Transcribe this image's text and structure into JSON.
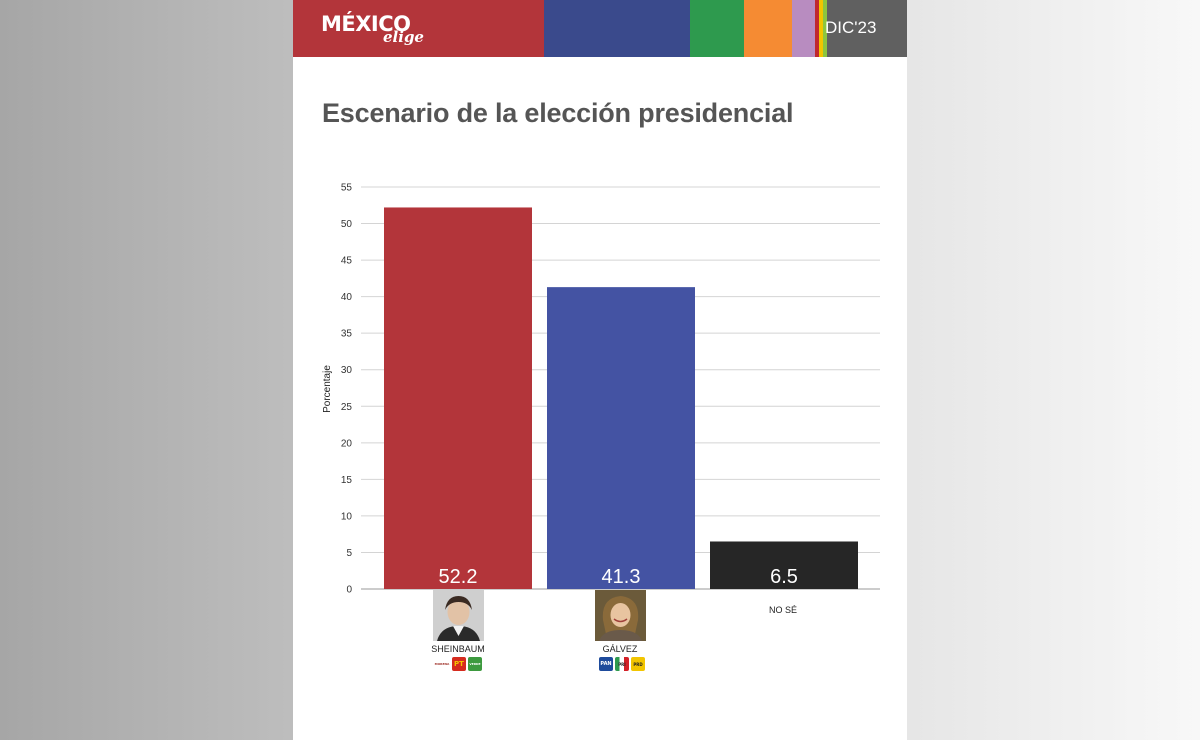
{
  "header": {
    "logo_main": "MÉXICO",
    "logo_sub": "elige",
    "edition": "DIC'23"
  },
  "colors": {
    "brand_red": "#b3353a",
    "brand_blue": "#3a4a8c",
    "accent_green": "#2e9a4e",
    "accent_orange": "#f58b33",
    "accent_purple": "#b88cc0",
    "header_gray": "#606060",
    "bar_sheinbaum": "#b3353a",
    "bar_galvez": "#4453a3",
    "bar_nose": "#262626"
  },
  "chart_data": {
    "type": "bar",
    "title": "Escenario de la elección presidencial",
    "xlabel": "",
    "ylabel": "Porcentaje",
    "ylim": [
      0,
      55
    ],
    "yticks": [
      0,
      5,
      10,
      15,
      20,
      25,
      30,
      35,
      40,
      45,
      50,
      55
    ],
    "categories": [
      "SHEINBAUM",
      "GÁLVEZ",
      "NO SÉ"
    ],
    "values": [
      52.2,
      41.3,
      6.5
    ],
    "data_labels": [
      "52.2",
      "41.3",
      "6.5"
    ],
    "grid": true,
    "legend": "none"
  },
  "candidates": [
    {
      "photo_icon": "sheinbaum-photo-icon",
      "party_logos": [
        {
          "icon": "morena-logo-icon",
          "text": "MORENA",
          "color": "#a0332b"
        },
        {
          "icon": "pt-logo-icon",
          "text": "PT",
          "color": "#d52b1e"
        },
        {
          "icon": "pvem-logo-icon",
          "text": "VERDE",
          "color": "#3d9a3f"
        }
      ]
    },
    {
      "photo_icon": "galvez-photo-icon",
      "party_logos": [
        {
          "icon": "pan-logo-icon",
          "text": "PAN",
          "color": "#1e4b9c"
        },
        {
          "icon": "pri-logo-icon",
          "text": "PRI",
          "color": "#d32027"
        },
        {
          "icon": "prd-logo-icon",
          "text": "PRD",
          "color": "#f2c500"
        }
      ]
    }
  ]
}
